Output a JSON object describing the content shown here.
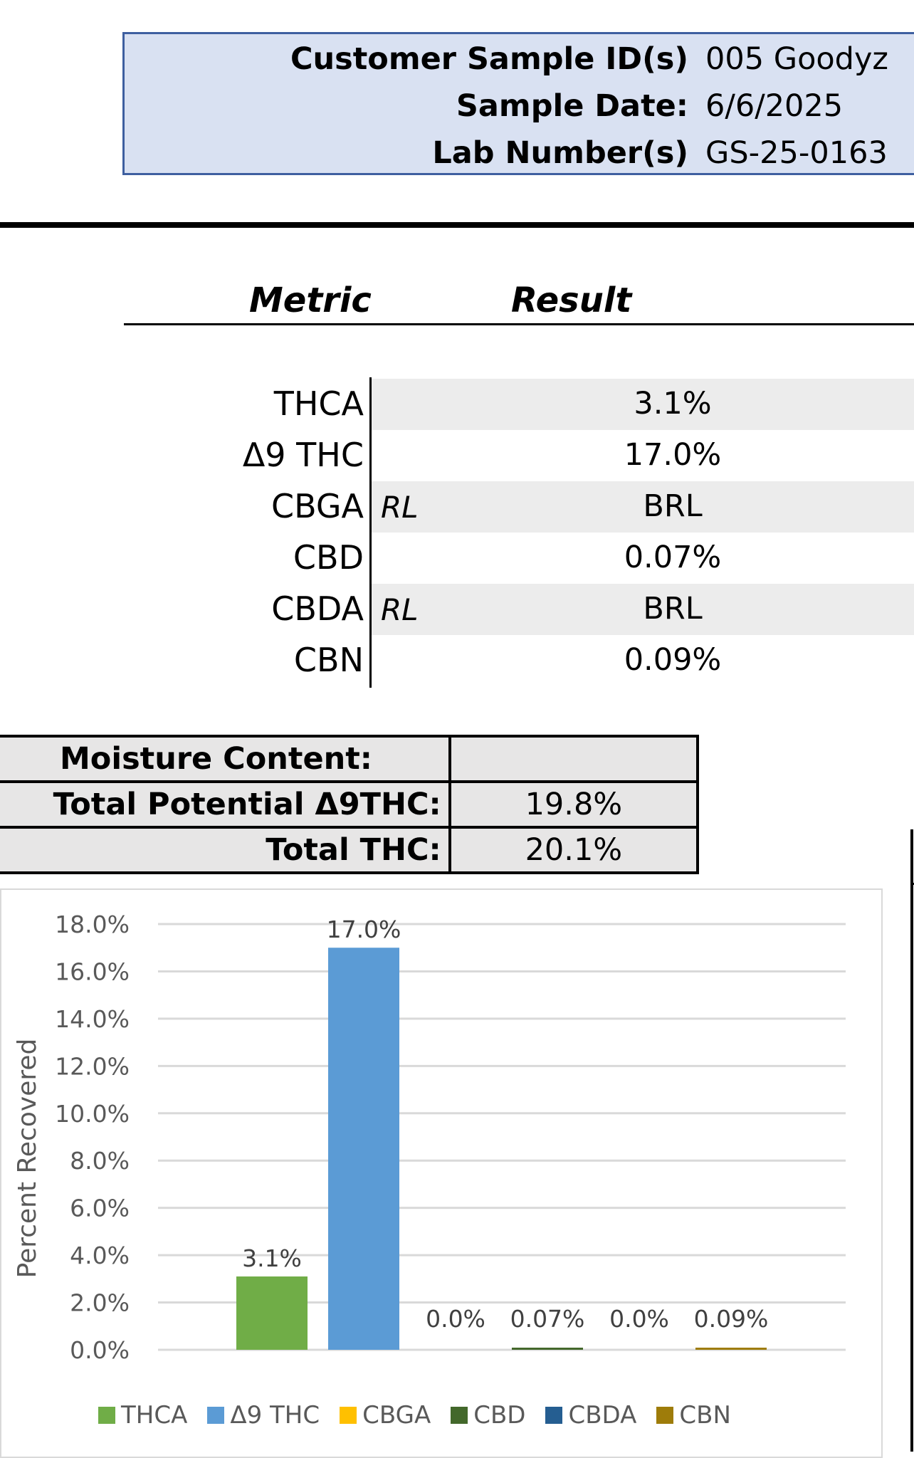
{
  "header": {
    "rows": [
      {
        "label": "Customer Sample ID(s)",
        "value": "005 Goodyz"
      },
      {
        "label": "Sample Date:",
        "value": "6/6/2025"
      },
      {
        "label": "Lab Number(s)",
        "value": "GS-25-0163"
      }
    ]
  },
  "metrics_table": {
    "col_metric": "Metric",
    "col_result": "Result",
    "rows": [
      {
        "name": "THCA",
        "flag": "",
        "result": "3.1%"
      },
      {
        "name": "Δ9 THC",
        "flag": "",
        "result": "17.0%"
      },
      {
        "name": "CBGA",
        "flag": "RL",
        "result": "BRL"
      },
      {
        "name": "CBD",
        "flag": "",
        "result": "0.07%"
      },
      {
        "name": "CBDA",
        "flag": "RL",
        "result": "BRL"
      },
      {
        "name": "CBN",
        "flag": "",
        "result": "0.09%"
      }
    ]
  },
  "totals": [
    {
      "label": "Moisture Content:",
      "value": ""
    },
    {
      "label": "Total Potential Δ9THC:",
      "value": "19.8%"
    },
    {
      "label": "Total THC:",
      "value": "20.1%"
    }
  ],
  "chart_data": {
    "type": "bar",
    "categories": [
      "THCA",
      "Δ9 THC",
      "CBGA",
      "CBD",
      "CBDA",
      "CBN"
    ],
    "values": [
      3.1,
      17.0,
      0.0,
      0.07,
      0.0,
      0.09
    ],
    "data_labels": [
      "3.1%",
      "17.0%",
      "0.0%",
      "0.07%",
      "0.0%",
      "0.09%"
    ],
    "colors": [
      "#70ad47",
      "#5b9bd5",
      "#ffc000",
      "#43682b",
      "#255e91",
      "#9e7c0a"
    ],
    "ylabel": "Percent Recovered",
    "ylim": [
      0,
      18
    ],
    "y_ticks": [
      "0.0%",
      "2.0%",
      "4.0%",
      "6.0%",
      "8.0%",
      "10.0%",
      "12.0%",
      "14.0%",
      "16.0%",
      "18.0%"
    ],
    "grid": true,
    "legend": "bottom"
  }
}
